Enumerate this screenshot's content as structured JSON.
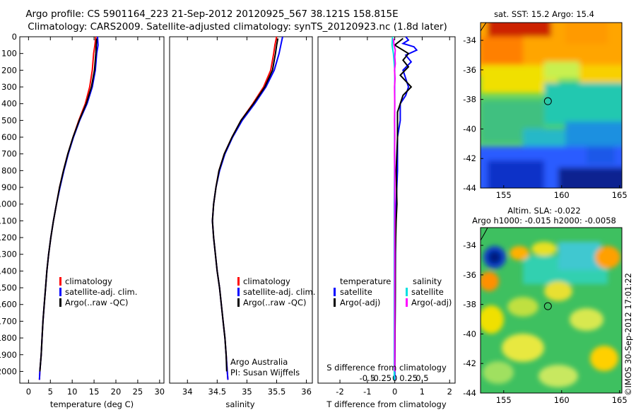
{
  "header": {
    "line1": "Argo profile: CS 5901164_223 21-Sep-2012 20120925_567 38.121S 158.815E",
    "line2": "Climatology: CARS2009. Satellite-adjusted climatology: synTS_20120923.nc (1.8d later)"
  },
  "side_stamp": "©IMOS 30-Sep-2012 17:01:22",
  "colors": {
    "climatology": "#ff0000",
    "satellite": "#0000ff",
    "argo": "#000000",
    "satellite_salinity": "#00e0e0",
    "argo_salinity": "#ff00ff"
  },
  "chart_data": [
    {
      "id": "temperature",
      "type": "line",
      "xlabel": "temperature (deg C)",
      "ylabel": "",
      "xlim": [
        -2,
        31
      ],
      "ylim": [
        2070,
        0
      ],
      "xticks": [
        "0",
        "5",
        "10",
        "15",
        "20",
        "25",
        "30"
      ],
      "yticks": [
        "0",
        "100",
        "200",
        "300",
        "400",
        "500",
        "600",
        "700",
        "800",
        "900",
        "1000",
        "1100",
        "1200",
        "1300",
        "1400",
        "1500",
        "1600",
        "1700",
        "1800",
        "1900",
        "2000"
      ],
      "legend": [
        "climatology",
        "satellite-adj. clim.",
        "Argo(..raw -QC)"
      ],
      "legend_position": "lower-center",
      "series": [
        {
          "name": "climatology",
          "color": "#ff0000",
          "points": [
            [
              15.4,
              0
            ],
            [
              15.2,
              50
            ],
            [
              14.9,
              100
            ],
            [
              14.6,
              200
            ],
            [
              14.0,
              300
            ],
            [
              13.0,
              400
            ],
            [
              11.5,
              500
            ],
            [
              10.2,
              600
            ],
            [
              9.0,
              700
            ],
            [
              8.0,
              800
            ],
            [
              7.1,
              900
            ],
            [
              6.4,
              1000
            ],
            [
              5.7,
              1100
            ],
            [
              5.1,
              1200
            ],
            [
              4.6,
              1300
            ],
            [
              4.2,
              1400
            ],
            [
              3.9,
              1500
            ],
            [
              3.6,
              1600
            ],
            [
              3.3,
              1700
            ],
            [
              3.1,
              1800
            ],
            [
              2.9,
              1900
            ],
            [
              2.6,
              2000
            ],
            [
              2.5,
              2050
            ]
          ]
        },
        {
          "name": "satellite-adj. clim.",
          "color": "#0000ff",
          "points": [
            [
              15.8,
              0
            ],
            [
              15.9,
              50
            ],
            [
              15.6,
              100
            ],
            [
              15.3,
              200
            ],
            [
              14.6,
              300
            ],
            [
              13.4,
              400
            ],
            [
              11.7,
              500
            ],
            [
              10.3,
              600
            ],
            [
              9.1,
              700
            ],
            [
              8.1,
              800
            ],
            [
              7.2,
              900
            ],
            [
              6.4,
              1000
            ],
            [
              5.7,
              1100
            ],
            [
              5.1,
              1200
            ],
            [
              4.6,
              1300
            ],
            [
              4.2,
              1400
            ],
            [
              3.9,
              1500
            ],
            [
              3.6,
              1600
            ],
            [
              3.3,
              1700
            ],
            [
              3.1,
              1800
            ],
            [
              2.9,
              1900
            ],
            [
              2.6,
              2000
            ],
            [
              2.5,
              2050
            ]
          ]
        },
        {
          "name": "Argo(..raw -QC)",
          "color": "#000000",
          "points": [
            [
              15.6,
              10
            ],
            [
              15.5,
              50
            ],
            [
              15.4,
              100
            ],
            [
              15.1,
              200
            ],
            [
              14.4,
              300
            ],
            [
              13.2,
              400
            ],
            [
              11.6,
              500
            ],
            [
              10.2,
              600
            ],
            [
              9.0,
              700
            ],
            [
              8.0,
              800
            ],
            [
              7.1,
              900
            ],
            [
              6.4,
              1000
            ],
            [
              5.7,
              1100
            ],
            [
              5.1,
              1200
            ],
            [
              4.6,
              1300
            ],
            [
              4.2,
              1400
            ],
            [
              3.9,
              1500
            ],
            [
              3.6,
              1600
            ],
            [
              3.3,
              1700
            ],
            [
              3.1,
              1800
            ],
            [
              2.9,
              1900
            ],
            [
              2.6,
              2000
            ]
          ]
        }
      ]
    },
    {
      "id": "salinity",
      "type": "line",
      "xlabel": "salinity",
      "xlim": [
        33.7,
        36.1
      ],
      "ylim": [
        2070,
        0
      ],
      "xticks": [
        "34",
        "34.5",
        "35",
        "35.5",
        "36"
      ],
      "legend": [
        "climatology",
        "satellite-adj. clim.",
        "Argo(..raw -QC)"
      ],
      "legend_position": "lower-center",
      "annotation": [
        "Argo Australia",
        "PI: Susan Wijffels"
      ],
      "series": [
        {
          "name": "climatology",
          "color": "#ff0000",
          "points": [
            [
              35.5,
              0
            ],
            [
              35.47,
              50
            ],
            [
              35.45,
              100
            ],
            [
              35.4,
              200
            ],
            [
              35.28,
              300
            ],
            [
              35.1,
              400
            ],
            [
              34.9,
              500
            ],
            [
              34.75,
              600
            ],
            [
              34.62,
              700
            ],
            [
              34.53,
              800
            ],
            [
              34.48,
              900
            ],
            [
              34.44,
              1000
            ],
            [
              34.42,
              1100
            ],
            [
              34.44,
              1200
            ],
            [
              34.47,
              1300
            ],
            [
              34.5,
              1400
            ],
            [
              34.54,
              1500
            ],
            [
              34.57,
              1600
            ],
            [
              34.6,
              1700
            ],
            [
              34.63,
              1800
            ],
            [
              34.65,
              1900
            ],
            [
              34.67,
              2000
            ],
            [
              34.68,
              2050
            ]
          ]
        },
        {
          "name": "satellite-adj. clim.",
          "color": "#0000ff",
          "points": [
            [
              35.6,
              0
            ],
            [
              35.57,
              50
            ],
            [
              35.54,
              100
            ],
            [
              35.46,
              200
            ],
            [
              35.32,
              300
            ],
            [
              35.13,
              400
            ],
            [
              34.92,
              500
            ],
            [
              34.76,
              600
            ],
            [
              34.63,
              700
            ],
            [
              34.54,
              800
            ],
            [
              34.48,
              900
            ],
            [
              34.44,
              1000
            ],
            [
              34.42,
              1100
            ],
            [
              34.44,
              1200
            ],
            [
              34.47,
              1300
            ],
            [
              34.5,
              1400
            ],
            [
              34.54,
              1500
            ],
            [
              34.57,
              1600
            ],
            [
              34.6,
              1700
            ],
            [
              34.63,
              1800
            ],
            [
              34.65,
              1900
            ],
            [
              34.67,
              2000
            ],
            [
              34.68,
              2050
            ]
          ]
        },
        {
          "name": "Argo(..raw -QC)",
          "color": "#000000",
          "points": [
            [
              35.52,
              10
            ],
            [
              35.5,
              50
            ],
            [
              35.48,
              100
            ],
            [
              35.43,
              200
            ],
            [
              35.3,
              300
            ],
            [
              35.11,
              400
            ],
            [
              34.9,
              500
            ],
            [
              34.75,
              600
            ],
            [
              34.62,
              700
            ],
            [
              34.53,
              800
            ],
            [
              34.48,
              900
            ],
            [
              34.44,
              1000
            ],
            [
              34.42,
              1100
            ],
            [
              34.44,
              1200
            ],
            [
              34.47,
              1300
            ],
            [
              34.5,
              1400
            ],
            [
              34.54,
              1500
            ],
            [
              34.57,
              1600
            ],
            [
              34.6,
              1700
            ],
            [
              34.63,
              1800
            ],
            [
              34.65,
              1900
            ],
            [
              34.66,
              2000
            ]
          ]
        }
      ]
    },
    {
      "id": "difference",
      "type": "line",
      "xlabel": "T difference from climatology",
      "xlabel_top": "S difference from climatology",
      "xlim": [
        -2.8,
        2.2
      ],
      "ylim": [
        2070,
        0
      ],
      "xticks": [
        "-2",
        "-1",
        "0",
        "1",
        "2"
      ],
      "xticks_top": [
        "-0.5",
        "-0.25",
        "0",
        "0.25",
        "0.5"
      ],
      "legend_titles": [
        "temperature",
        "salinity"
      ],
      "legend": [
        "satellite",
        "Argo(-adj)",
        "satellite",
        "Argo(-adj)"
      ],
      "legend_position": "lower-center",
      "series": [
        {
          "name": "temperature satellite",
          "color": "#0000ff",
          "points": [
            [
              0.4,
              0
            ],
            [
              0.5,
              20
            ],
            [
              0.3,
              40
            ],
            [
              0.7,
              60
            ],
            [
              0.8,
              80
            ],
            [
              0.4,
              110
            ],
            [
              0.6,
              150
            ],
            [
              0.3,
              200
            ],
            [
              0.4,
              250
            ],
            [
              0.5,
              300
            ],
            [
              0.4,
              350
            ],
            [
              0.2,
              400
            ],
            [
              0.2,
              500
            ],
            [
              0.1,
              600
            ],
            [
              0.1,
              800
            ],
            [
              0.05,
              1000
            ],
            [
              0.03,
              1200
            ],
            [
              0.02,
              1500
            ],
            [
              0.0,
              2050
            ]
          ]
        },
        {
          "name": "temperature Argo(-adj)",
          "color": "#000000",
          "points": [
            [
              0.3,
              10
            ],
            [
              0.0,
              50
            ],
            [
              0.5,
              100
            ],
            [
              0.3,
              140
            ],
            [
              0.5,
              180
            ],
            [
              0.2,
              230
            ],
            [
              0.6,
              300
            ],
            [
              0.3,
              350
            ],
            [
              0.2,
              400
            ],
            [
              0.1,
              450
            ],
            [
              0.1,
              600
            ],
            [
              0.05,
              800
            ],
            [
              0.08,
              1000
            ],
            [
              0.05,
              1100
            ],
            [
              0.02,
              1300
            ],
            [
              0.02,
              1500
            ],
            [
              0.0,
              2000
            ]
          ]
        },
        {
          "name": "salinity satellite",
          "color": "#00e0e0",
          "points": [
            [
              -0.08,
              0
            ],
            [
              -0.1,
              50
            ],
            [
              -0.05,
              100
            ],
            [
              0.0,
              200
            ],
            [
              0.0,
              400
            ],
            [
              -0.01,
              600
            ],
            [
              -0.01,
              800
            ],
            [
              -0.02,
              1000
            ],
            [
              -0.02,
              1500
            ],
            [
              -0.02,
              2050
            ]
          ]
        },
        {
          "name": "salinity Argo(-adj)",
          "color": "#ff00ff",
          "points": [
            [
              -0.05,
              10
            ],
            [
              -0.03,
              50
            ],
            [
              0.02,
              80
            ],
            [
              0.0,
              120
            ],
            [
              0.02,
              160
            ],
            [
              -0.01,
              200
            ],
            [
              0.01,
              250
            ],
            [
              -0.01,
              300
            ],
            [
              0.0,
              400
            ],
            [
              -0.01,
              500
            ],
            [
              0.0,
              600
            ],
            [
              -0.01,
              700
            ],
            [
              0.0,
              800
            ],
            [
              0.0,
              1000
            ],
            [
              0.0,
              1200
            ],
            [
              0.0,
              1500
            ],
            [
              0.0,
              2000
            ]
          ]
        }
      ]
    },
    {
      "id": "sst-map",
      "type": "heatmap",
      "title": "sat. SST: 15.2 Argo: 15.4",
      "xlim": [
        153,
        165.2
      ],
      "ylim": [
        -44,
        -32.8
      ],
      "xticks": [
        "155",
        "160",
        "165"
      ],
      "yticks": [
        "-34",
        "-36",
        "-38",
        "-40",
        "-42",
        "-44"
      ],
      "argo_marker": [
        158.815,
        -38.121
      ],
      "colormap": "jet"
    },
    {
      "id": "sla-map",
      "type": "heatmap",
      "title_line1": "Altim. SLA: -0.022",
      "title_line2": "Argo h1000: -0.015 h2000: -0.0058",
      "xlim": [
        153,
        165.2
      ],
      "ylim": [
        -44,
        -32.8
      ],
      "xticks": [
        "155",
        "160",
        "165"
      ],
      "yticks": [
        "-34",
        "-36",
        "-38",
        "-40",
        "-42",
        "-44"
      ],
      "argo_marker": [
        158.815,
        -38.121
      ],
      "colormap": "jet"
    }
  ]
}
